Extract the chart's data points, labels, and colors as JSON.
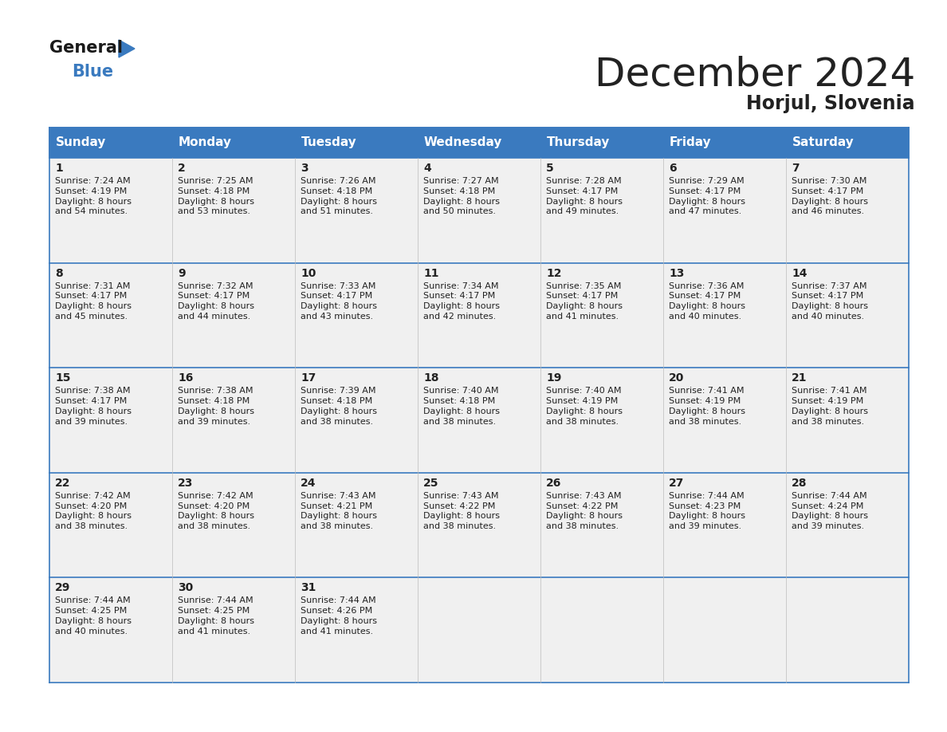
{
  "title": "December 2024",
  "subtitle": "Horjul, Slovenia",
  "header_color": "#3a7abf",
  "header_text_color": "#ffffff",
  "cell_bg_color": "#f0f0f0",
  "day_headers": [
    "Sunday",
    "Monday",
    "Tuesday",
    "Wednesday",
    "Thursday",
    "Friday",
    "Saturday"
  ],
  "days": [
    {
      "day": 1,
      "col": 0,
      "row": 0,
      "sunrise": "7:24 AM",
      "sunset": "4:19 PM",
      "daylight": "8 hours\nand 54 minutes."
    },
    {
      "day": 2,
      "col": 1,
      "row": 0,
      "sunrise": "7:25 AM",
      "sunset": "4:18 PM",
      "daylight": "8 hours\nand 53 minutes."
    },
    {
      "day": 3,
      "col": 2,
      "row": 0,
      "sunrise": "7:26 AM",
      "sunset": "4:18 PM",
      "daylight": "8 hours\nand 51 minutes."
    },
    {
      "day": 4,
      "col": 3,
      "row": 0,
      "sunrise": "7:27 AM",
      "sunset": "4:18 PM",
      "daylight": "8 hours\nand 50 minutes."
    },
    {
      "day": 5,
      "col": 4,
      "row": 0,
      "sunrise": "7:28 AM",
      "sunset": "4:17 PM",
      "daylight": "8 hours\nand 49 minutes."
    },
    {
      "day": 6,
      "col": 5,
      "row": 0,
      "sunrise": "7:29 AM",
      "sunset": "4:17 PM",
      "daylight": "8 hours\nand 47 minutes."
    },
    {
      "day": 7,
      "col": 6,
      "row": 0,
      "sunrise": "7:30 AM",
      "sunset": "4:17 PM",
      "daylight": "8 hours\nand 46 minutes."
    },
    {
      "day": 8,
      "col": 0,
      "row": 1,
      "sunrise": "7:31 AM",
      "sunset": "4:17 PM",
      "daylight": "8 hours\nand 45 minutes."
    },
    {
      "day": 9,
      "col": 1,
      "row": 1,
      "sunrise": "7:32 AM",
      "sunset": "4:17 PM",
      "daylight": "8 hours\nand 44 minutes."
    },
    {
      "day": 10,
      "col": 2,
      "row": 1,
      "sunrise": "7:33 AM",
      "sunset": "4:17 PM",
      "daylight": "8 hours\nand 43 minutes."
    },
    {
      "day": 11,
      "col": 3,
      "row": 1,
      "sunrise": "7:34 AM",
      "sunset": "4:17 PM",
      "daylight": "8 hours\nand 42 minutes."
    },
    {
      "day": 12,
      "col": 4,
      "row": 1,
      "sunrise": "7:35 AM",
      "sunset": "4:17 PM",
      "daylight": "8 hours\nand 41 minutes."
    },
    {
      "day": 13,
      "col": 5,
      "row": 1,
      "sunrise": "7:36 AM",
      "sunset": "4:17 PM",
      "daylight": "8 hours\nand 40 minutes."
    },
    {
      "day": 14,
      "col": 6,
      "row": 1,
      "sunrise": "7:37 AM",
      "sunset": "4:17 PM",
      "daylight": "8 hours\nand 40 minutes."
    },
    {
      "day": 15,
      "col": 0,
      "row": 2,
      "sunrise": "7:38 AM",
      "sunset": "4:17 PM",
      "daylight": "8 hours\nand 39 minutes."
    },
    {
      "day": 16,
      "col": 1,
      "row": 2,
      "sunrise": "7:38 AM",
      "sunset": "4:18 PM",
      "daylight": "8 hours\nand 39 minutes."
    },
    {
      "day": 17,
      "col": 2,
      "row": 2,
      "sunrise": "7:39 AM",
      "sunset": "4:18 PM",
      "daylight": "8 hours\nand 38 minutes."
    },
    {
      "day": 18,
      "col": 3,
      "row": 2,
      "sunrise": "7:40 AM",
      "sunset": "4:18 PM",
      "daylight": "8 hours\nand 38 minutes."
    },
    {
      "day": 19,
      "col": 4,
      "row": 2,
      "sunrise": "7:40 AM",
      "sunset": "4:19 PM",
      "daylight": "8 hours\nand 38 minutes."
    },
    {
      "day": 20,
      "col": 5,
      "row": 2,
      "sunrise": "7:41 AM",
      "sunset": "4:19 PM",
      "daylight": "8 hours\nand 38 minutes."
    },
    {
      "day": 21,
      "col": 6,
      "row": 2,
      "sunrise": "7:41 AM",
      "sunset": "4:19 PM",
      "daylight": "8 hours\nand 38 minutes."
    },
    {
      "day": 22,
      "col": 0,
      "row": 3,
      "sunrise": "7:42 AM",
      "sunset": "4:20 PM",
      "daylight": "8 hours\nand 38 minutes."
    },
    {
      "day": 23,
      "col": 1,
      "row": 3,
      "sunrise": "7:42 AM",
      "sunset": "4:20 PM",
      "daylight": "8 hours\nand 38 minutes."
    },
    {
      "day": 24,
      "col": 2,
      "row": 3,
      "sunrise": "7:43 AM",
      "sunset": "4:21 PM",
      "daylight": "8 hours\nand 38 minutes."
    },
    {
      "day": 25,
      "col": 3,
      "row": 3,
      "sunrise": "7:43 AM",
      "sunset": "4:22 PM",
      "daylight": "8 hours\nand 38 minutes."
    },
    {
      "day": 26,
      "col": 4,
      "row": 3,
      "sunrise": "7:43 AM",
      "sunset": "4:22 PM",
      "daylight": "8 hours\nand 38 minutes."
    },
    {
      "day": 27,
      "col": 5,
      "row": 3,
      "sunrise": "7:44 AM",
      "sunset": "4:23 PM",
      "daylight": "8 hours\nand 39 minutes."
    },
    {
      "day": 28,
      "col": 6,
      "row": 3,
      "sunrise": "7:44 AM",
      "sunset": "4:24 PM",
      "daylight": "8 hours\nand 39 minutes."
    },
    {
      "day": 29,
      "col": 0,
      "row": 4,
      "sunrise": "7:44 AM",
      "sunset": "4:25 PM",
      "daylight": "8 hours\nand 40 minutes."
    },
    {
      "day": 30,
      "col": 1,
      "row": 4,
      "sunrise": "7:44 AM",
      "sunset": "4:25 PM",
      "daylight": "8 hours\nand 41 minutes."
    },
    {
      "day": 31,
      "col": 2,
      "row": 4,
      "sunrise": "7:44 AM",
      "sunset": "4:26 PM",
      "daylight": "8 hours\nand 41 minutes."
    }
  ],
  "n_rows": 5,
  "n_cols": 7,
  "header_color_border": "#3a7abf",
  "text_color": "#222222",
  "logo_black": "#1a1a1a",
  "logo_blue": "#3a7abf",
  "title_fontsize": 36,
  "subtitle_fontsize": 17,
  "day_header_fontsize": 11,
  "day_num_fontsize": 10,
  "cell_text_fontsize": 8
}
